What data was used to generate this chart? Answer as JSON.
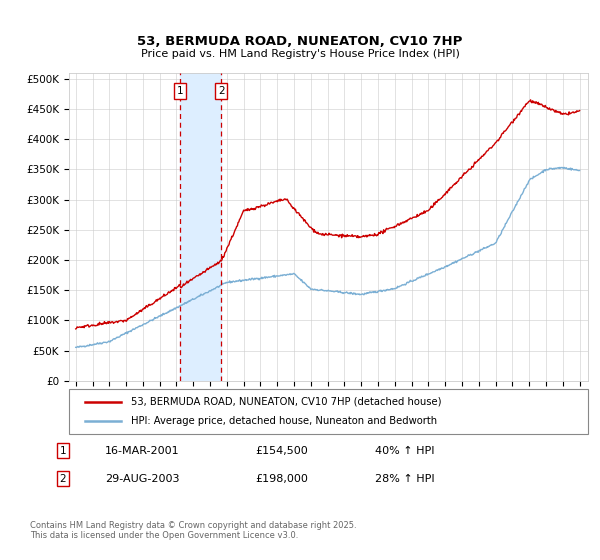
{
  "title": "53, BERMUDA ROAD, NUNEATON, CV10 7HP",
  "subtitle": "Price paid vs. HM Land Registry's House Price Index (HPI)",
  "ylabel_ticks": [
    "£0",
    "£50K",
    "£100K",
    "£150K",
    "£200K",
    "£250K",
    "£300K",
    "£350K",
    "£400K",
    "£450K",
    "£500K"
  ],
  "ytick_values": [
    0,
    50000,
    100000,
    150000,
    200000,
    250000,
    300000,
    350000,
    400000,
    450000,
    500000
  ],
  "ylim": [
    0,
    510000
  ],
  "legend_line1": "53, BERMUDA ROAD, NUNEATON, CV10 7HP (detached house)",
  "legend_line2": "HPI: Average price, detached house, Nuneaton and Bedworth",
  "sale1_date": "16-MAR-2001",
  "sale1_price": "£154,500",
  "sale1_hpi": "40% ↑ HPI",
  "sale1_year": 2001.21,
  "sale2_date": "29-AUG-2003",
  "sale2_price": "£198,000",
  "sale2_hpi": "28% ↑ HPI",
  "sale2_year": 2003.66,
  "red_color": "#cc0000",
  "blue_color": "#7bafd4",
  "span_color": "#ddeeff",
  "footnote": "Contains HM Land Registry data © Crown copyright and database right 2025.\nThis data is licensed under the Open Government Licence v3.0."
}
